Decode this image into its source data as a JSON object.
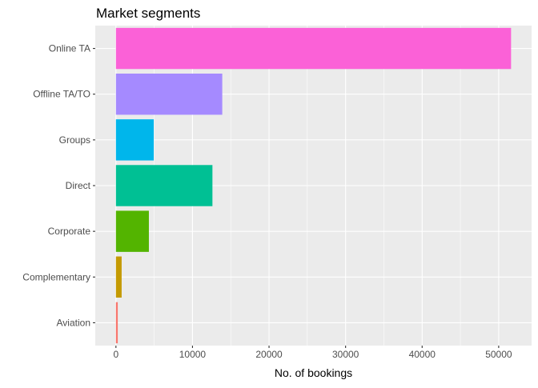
{
  "chart_data": {
    "type": "bar",
    "orientation": "horizontal",
    "title": "Market segments",
    "xlabel": "No. of bookings",
    "ylabel": "",
    "xlim": [
      -2700,
      54300
    ],
    "xticks": [
      0,
      10000,
      20000,
      30000,
      40000,
      50000
    ],
    "grid": true,
    "legend": "none",
    "panel_background": "#EBEBEB",
    "grid_color": "#FFFFFF",
    "categories": [
      "Aviation",
      "Complementary",
      "Corporate",
      "Direct",
      "Groups",
      "Offline TA/TO",
      "Online TA"
    ],
    "values": [
      237,
      743,
      4303,
      12606,
      4942,
      13889,
      51618
    ],
    "colors": [
      "#F8766D",
      "#C49A00",
      "#53B400",
      "#00C094",
      "#00B6EB",
      "#A58AFF",
      "#FB61D7"
    ]
  }
}
